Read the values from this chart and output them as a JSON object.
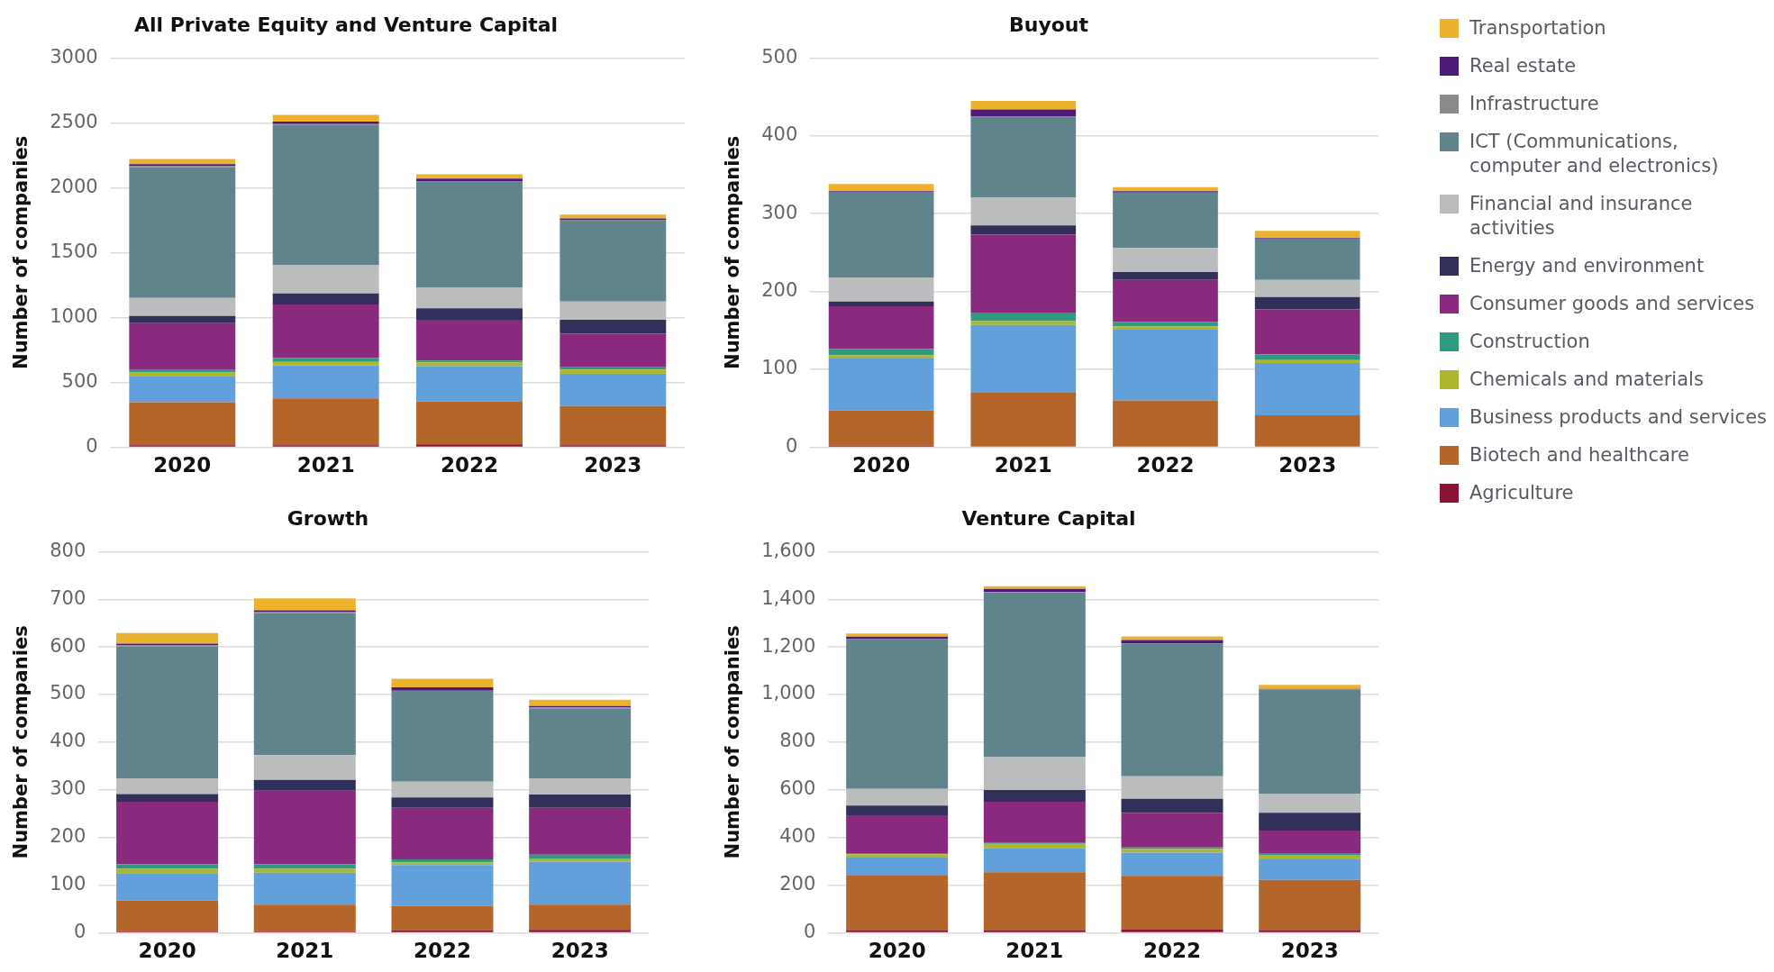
{
  "chart_data": [
    {
      "type": "bar",
      "title": "All Private Equity and Venture Capital",
      "ylabel": "Number of companies",
      "categories": [
        "2020",
        "2021",
        "2022",
        "2023"
      ],
      "stacked": true,
      "grid": "y",
      "legend": "right",
      "ylim": [
        0,
        3000
      ],
      "yticks": [
        0,
        500,
        1000,
        1500,
        2000,
        2500,
        3000
      ],
      "series": [
        {
          "name": "Agriculture",
          "color": "#8a1232",
          "values": [
            15,
            15,
            22,
            15
          ]
        },
        {
          "name": "Biotech and healthcare",
          "color": "#b3652a",
          "values": [
            332,
            361,
            332,
            302
          ]
        },
        {
          "name": "Business products and services",
          "color": "#61a0da",
          "values": [
            203,
            255,
            270,
            248
          ]
        },
        {
          "name": "Chemicals and materials",
          "color": "#adb72e",
          "values": [
            26,
            26,
            29,
            33
          ]
        },
        {
          "name": "Construction",
          "color": "#2f9a7e",
          "values": [
            18,
            29,
            15,
            18
          ]
        },
        {
          "name": "Consumer goods and services",
          "color": "#8a2a7e",
          "values": [
            362,
            414,
            314,
            259
          ]
        },
        {
          "name": "Energy and environment",
          "color": "#30305a",
          "values": [
            55,
            85,
            88,
            107
          ]
        },
        {
          "name": "Financial and insurance activities",
          "color": "#bbbcbe",
          "values": [
            140,
            217,
            159,
            140
          ]
        },
        {
          "name": "ICT (Communications, computer and electronics)",
          "color": "#5f848c",
          "values": [
            1008,
            1081,
            815,
            623
          ]
        },
        {
          "name": "Infrastructure",
          "color": "#8a8a8c",
          "values": [
            7,
            8,
            8,
            8
          ]
        },
        {
          "name": "Real estate",
          "color": "#4e1a7a",
          "values": [
            15,
            18,
            18,
            11
          ]
        },
        {
          "name": "Transportation",
          "color": "#ecb22e",
          "values": [
            40,
            52,
            33,
            29
          ]
        }
      ]
    },
    {
      "type": "bar",
      "title": "Buyout",
      "ylabel": "Number of companies",
      "categories": [
        "2020",
        "2021",
        "2022",
        "2023"
      ],
      "stacked": true,
      "grid": "y",
      "ylim": [
        0,
        500
      ],
      "yticks": [
        0,
        100,
        200,
        300,
        400,
        500
      ],
      "series": [
        {
          "color": "#8a1232",
          "values": [
            2,
            0,
            0,
            0
          ]
        },
        {
          "color": "#b3652a",
          "values": [
            45,
            70,
            60,
            41
          ]
        },
        {
          "color": "#61a0da",
          "values": [
            67,
            87,
            91,
            67
          ]
        },
        {
          "color": "#adb72e",
          "values": [
            4,
            5,
            4,
            4
          ]
        },
        {
          "color": "#2f9a7e",
          "values": [
            8,
            11,
            6,
            7
          ]
        },
        {
          "color": "#8a2a7e",
          "values": [
            55,
            100,
            54,
            58
          ]
        },
        {
          "color": "#30305a",
          "values": [
            6,
            12,
            10,
            16
          ]
        },
        {
          "color": "#bbbcbe",
          "values": [
            31,
            36,
            31,
            22
          ]
        },
        {
          "color": "#5f848c",
          "values": [
            110,
            104,
            71,
            53
          ]
        },
        {
          "color": "#8a8a8c",
          "values": [
            0,
            0,
            0,
            0
          ]
        },
        {
          "color": "#4e1a7a",
          "values": [
            1,
            9,
            2,
            1
          ]
        },
        {
          "color": "#ecb22e",
          "values": [
            9,
            11,
            5,
            9
          ]
        }
      ]
    },
    {
      "type": "bar",
      "title": "Growth",
      "ylabel": "Number of companies",
      "categories": [
        "2020",
        "2021",
        "2022",
        "2023"
      ],
      "stacked": true,
      "grid": "y",
      "ylim": [
        0,
        800
      ],
      "yticks": [
        0,
        100,
        200,
        300,
        400,
        500,
        600,
        700,
        800
      ],
      "series": [
        {
          "color": "#8a1232",
          "values": [
            3,
            3,
            5,
            6
          ]
        },
        {
          "color": "#b3652a",
          "values": [
            65,
            56,
            51,
            53
          ]
        },
        {
          "color": "#61a0da",
          "values": [
            57,
            67,
            86,
            90
          ]
        },
        {
          "color": "#adb72e",
          "values": [
            9,
            8,
            6,
            7
          ]
        },
        {
          "color": "#2f9a7e",
          "values": [
            10,
            10,
            6,
            8
          ]
        },
        {
          "color": "#8a2a7e",
          "values": [
            131,
            154,
            108,
            98
          ]
        },
        {
          "color": "#30305a",
          "values": [
            16,
            23,
            22,
            28
          ]
        },
        {
          "color": "#bbbcbe",
          "values": [
            33,
            52,
            33,
            34
          ]
        },
        {
          "color": "#5f848c",
          "values": [
            277,
            298,
            191,
            147
          ]
        },
        {
          "color": "#8a8a8c",
          "values": [
            2,
            3,
            0,
            2
          ]
        },
        {
          "color": "#4e1a7a",
          "values": [
            4,
            3,
            7,
            3
          ]
        },
        {
          "color": "#ecb22e",
          "values": [
            22,
            25,
            18,
            13
          ]
        }
      ]
    },
    {
      "type": "bar",
      "title": "Venture Capital",
      "ylabel": "Number of companies",
      "categories": [
        "2020",
        "2021",
        "2022",
        "2023"
      ],
      "stacked": true,
      "grid": "y",
      "ylim": [
        0,
        1600
      ],
      "yticks": [
        0,
        200,
        400,
        600,
        800,
        {
          "value": 1000,
          "label": "1,000"
        },
        {
          "value": 1200,
          "label": "1,200"
        },
        {
          "value": 1400,
          "label": "1,400"
        },
        {
          "value": 1600,
          "label": "1,600"
        }
      ],
      "series": [
        {
          "color": "#8a1232",
          "values": [
            11,
            11,
            15,
            11
          ]
        },
        {
          "color": "#b3652a",
          "values": [
            232,
            243,
            224,
            211
          ]
        },
        {
          "color": "#61a0da",
          "values": [
            72,
            100,
            97,
            86
          ]
        },
        {
          "color": "#adb72e",
          "values": [
            15,
            19,
            15,
            19
          ]
        },
        {
          "color": "#2f9a7e",
          "values": [
            4,
            4,
            7,
            7
          ]
        },
        {
          "color": "#8a2a7e",
          "values": [
            159,
            173,
            146,
            95
          ]
        },
        {
          "color": "#30305a",
          "values": [
            41,
            49,
            58,
            75
          ]
        },
        {
          "color": "#bbbcbe",
          "values": [
            70,
            138,
            95,
            78
          ]
        },
        {
          "color": "#5f848c",
          "values": [
            627,
            692,
            558,
            437
          ]
        },
        {
          "color": "#8a8a8c",
          "values": [
            4,
            2,
            null,
            2
          ]
        },
        {
          "color": "#4e1a7a",
          "values": [
            8,
            13,
            14,
            3
          ]
        },
        {
          "color": "#ecb22e",
          "values": [
            13,
            11,
            15,
            17
          ]
        }
      ]
    }
  ]
}
